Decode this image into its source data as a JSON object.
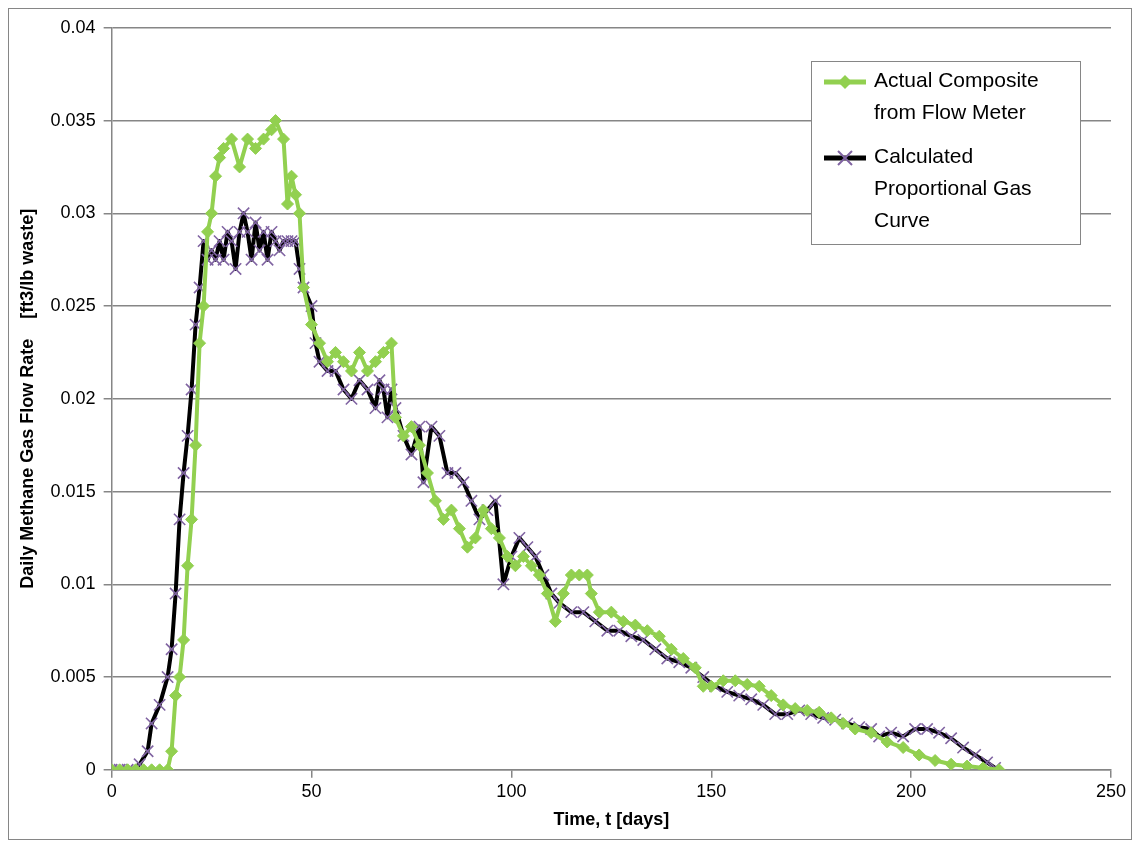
{
  "chart_data": {
    "type": "line",
    "xlabel": "Time, t [days]",
    "ylabel": "Daily Methane Gas Flow Rate    [ft3/lb waste]",
    "xlim": [
      0,
      250
    ],
    "xticks": [
      0,
      50,
      100,
      150,
      200,
      250
    ],
    "ylim": [
      0,
      0.04
    ],
    "yticks": [
      0,
      0.005,
      0.01,
      0.015,
      0.02,
      0.025,
      0.03,
      0.035,
      0.04
    ],
    "grid": "y",
    "legend": "top right",
    "series": [
      {
        "name": "Actual Composite from Flow Meter",
        "color": "#92d050",
        "marker": "diamond",
        "x": [
          0,
          2,
          4,
          6,
          8,
          10,
          12,
          14,
          15,
          16,
          17,
          18,
          19,
          20,
          21,
          22,
          23,
          24,
          25,
          26,
          27,
          28,
          30,
          32,
          34,
          36,
          38,
          40,
          41,
          43,
          44,
          45,
          46,
          47,
          48,
          50,
          52,
          54,
          56,
          58,
          60,
          62,
          64,
          66,
          68,
          70,
          71,
          73,
          75,
          77,
          79,
          81,
          83,
          85,
          87,
          89,
          91,
          93,
          95,
          97,
          99,
          101,
          103,
          105,
          107,
          109,
          111,
          113,
          115,
          117,
          119,
          120,
          122,
          125,
          128,
          131,
          134,
          137,
          140,
          143,
          146,
          148,
          150,
          153,
          156,
          159,
          162,
          165,
          168,
          171,
          174,
          177,
          180,
          183,
          186,
          190,
          194,
          198,
          202,
          206,
          210,
          214,
          218,
          222
        ],
        "values": [
          0,
          0,
          0,
          0,
          0,
          0,
          0,
          0,
          0.001,
          0.004,
          0.005,
          0.007,
          0.011,
          0.0135,
          0.0175,
          0.023,
          0.025,
          0.029,
          0.03,
          0.032,
          0.033,
          0.0335,
          0.034,
          0.0325,
          0.034,
          0.0335,
          0.034,
          0.0345,
          0.035,
          0.034,
          0.0305,
          0.032,
          0.031,
          0.03,
          0.026,
          0.024,
          0.023,
          0.022,
          0.0225,
          0.022,
          0.0215,
          0.0225,
          0.0215,
          0.022,
          0.0225,
          0.023,
          0.019,
          0.018,
          0.0185,
          0.0175,
          0.016,
          0.0145,
          0.0135,
          0.014,
          0.013,
          0.012,
          0.0125,
          0.014,
          0.013,
          0.0125,
          0.0115,
          0.011,
          0.0115,
          0.011,
          0.0105,
          0.0095,
          0.008,
          0.0095,
          0.0105,
          0.0105,
          0.0105,
          0.0095,
          0.0085,
          0.0085,
          0.008,
          0.0078,
          0.0075,
          0.0072,
          0.0065,
          0.006,
          0.0055,
          0.0045,
          0.0045,
          0.0048,
          0.0048,
          0.0046,
          0.0045,
          0.004,
          0.0035,
          0.0033,
          0.0032,
          0.0031,
          0.0028,
          0.0025,
          0.0022,
          0.002,
          0.0015,
          0.0012,
          0.0008,
          0.0005,
          0.0003,
          0.0002,
          0.0001,
          0
        ]
      },
      {
        "name": "Calculated Proportional Gas Curve",
        "color": "#000000",
        "marker": "cross",
        "x": [
          0,
          2,
          4,
          5,
          7,
          9,
          10,
          12,
          14,
          15,
          16,
          17,
          18,
          19,
          20,
          21,
          22,
          23,
          24,
          25,
          26,
          27,
          28,
          29,
          30,
          31,
          32,
          33,
          34,
          35,
          36,
          37,
          38,
          39,
          40,
          41,
          42,
          43,
          44,
          45,
          46,
          47,
          48,
          50,
          51,
          52,
          54,
          56,
          58,
          60,
          62,
          64,
          66,
          67,
          68,
          69,
          70,
          71,
          73,
          75,
          77,
          78,
          80,
          82,
          84,
          86,
          88,
          90,
          92,
          94,
          96,
          98,
          100,
          102,
          104,
          106,
          108,
          110,
          112,
          115,
          118,
          121,
          124,
          127,
          130,
          133,
          136,
          139,
          142,
          145,
          148,
          151,
          154,
          157,
          160,
          163,
          166,
          169,
          172,
          175,
          178,
          181,
          184,
          187,
          190,
          192,
          195,
          198,
          201,
          204,
          207,
          210,
          213,
          216,
          219,
          221
        ],
        "values": [
          0,
          0,
          0,
          0,
          0.0003,
          0.001,
          0.0025,
          0.0035,
          0.005,
          0.0065,
          0.0095,
          0.0135,
          0.016,
          0.018,
          0.0205,
          0.024,
          0.026,
          0.0285,
          0.0275,
          0.028,
          0.0275,
          0.0285,
          0.0275,
          0.029,
          0.0285,
          0.027,
          0.029,
          0.03,
          0.029,
          0.0275,
          0.0295,
          0.028,
          0.029,
          0.0275,
          0.029,
          0.0285,
          0.028,
          0.0285,
          0.0285,
          0.0285,
          0.0285,
          0.027,
          0.026,
          0.025,
          0.023,
          0.022,
          0.0215,
          0.0215,
          0.0205,
          0.02,
          0.021,
          0.0205,
          0.0195,
          0.021,
          0.0205,
          0.019,
          0.0205,
          0.0195,
          0.018,
          0.017,
          0.0185,
          0.0155,
          0.0185,
          0.018,
          0.016,
          0.016,
          0.0155,
          0.0145,
          0.0135,
          0.014,
          0.0145,
          0.01,
          0.0115,
          0.0125,
          0.012,
          0.0115,
          0.0105,
          0.0095,
          0.009,
          0.0085,
          0.0085,
          0.008,
          0.0075,
          0.0075,
          0.0072,
          0.007,
          0.0065,
          0.006,
          0.0058,
          0.0055,
          0.005,
          0.0045,
          0.0042,
          0.004,
          0.0038,
          0.0035,
          0.003,
          0.003,
          0.0032,
          0.003,
          0.0028,
          0.0027,
          0.0025,
          0.0023,
          0.0022,
          0.0018,
          0.002,
          0.0018,
          0.0022,
          0.0022,
          0.002,
          0.0017,
          0.0012,
          0.0008,
          0.0004,
          0.0001
        ]
      }
    ]
  }
}
